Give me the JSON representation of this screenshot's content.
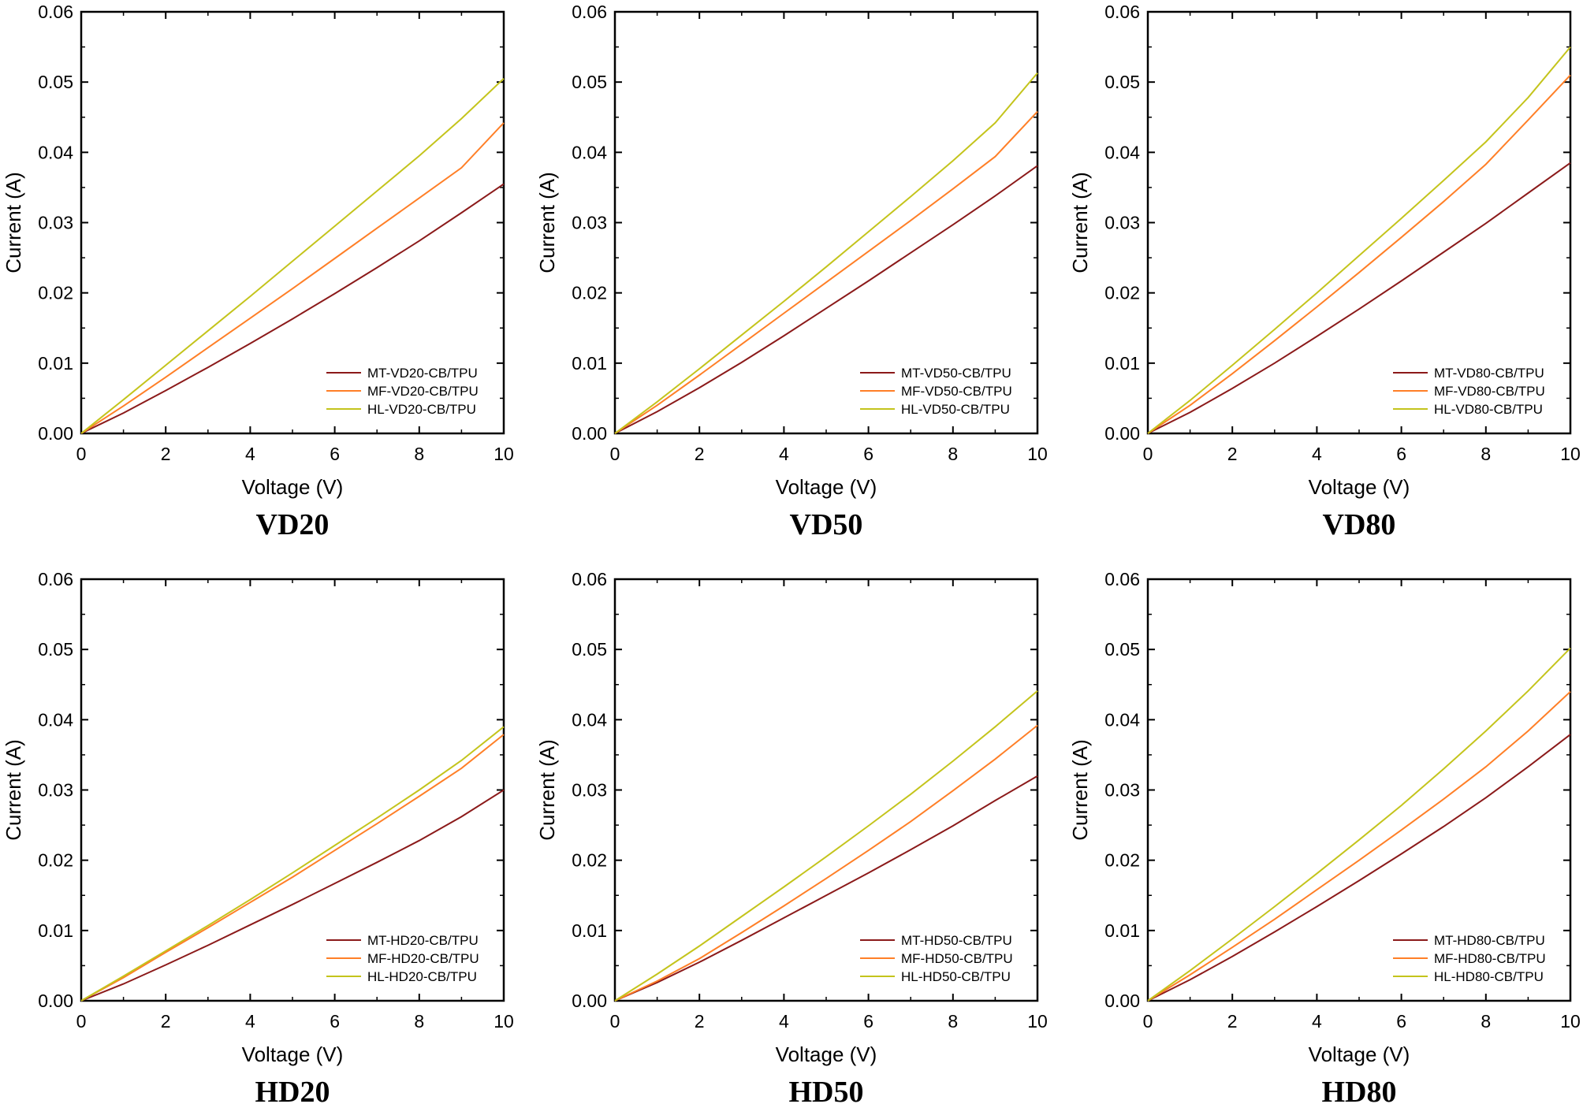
{
  "colors": {
    "MT": "#8b1a1a",
    "MF": "#ff7f27",
    "HL": "#c4c41c",
    "axis": "#000000",
    "background": "#ffffff"
  },
  "chart_data": [
    {
      "type": "line",
      "title": "VD20",
      "xlabel": "Voltage (V)",
      "ylabel": "Current (A)",
      "xlim": [
        0,
        10
      ],
      "ylim": [
        0,
        0.06
      ],
      "xticks": [
        "0",
        "2",
        "4",
        "6",
        "8",
        "10"
      ],
      "yticks": [
        "0.00",
        "0.01",
        "0.02",
        "0.03",
        "0.04",
        "0.05",
        "0.06"
      ],
      "legend_position": "bottom-right",
      "x": [
        0,
        1,
        2,
        3,
        4,
        5,
        6,
        7,
        8,
        9,
        10
      ],
      "series": [
        {
          "name": "MT-VD20-CB/TPU",
          "color": "#8b1a1a",
          "values": [
            0,
            0.0029,
            0.0061,
            0.0094,
            0.0128,
            0.0163,
            0.0199,
            0.0236,
            0.0274,
            0.0314,
            0.0355
          ]
        },
        {
          "name": "MF-VD20-CB/TPU",
          "color": "#ff7f27",
          "values": [
            0,
            0.0039,
            0.008,
            0.0122,
            0.0164,
            0.0206,
            0.0249,
            0.0292,
            0.0335,
            0.0378,
            0.0442
          ]
        },
        {
          "name": "HL-VD20-CB/TPU",
          "color": "#c4c41c",
          "values": [
            0,
            0.0048,
            0.0097,
            0.0146,
            0.0195,
            0.0245,
            0.0295,
            0.0345,
            0.0395,
            0.0448,
            0.0505
          ]
        }
      ]
    },
    {
      "type": "line",
      "title": "VD50",
      "xlabel": "Voltage (V)",
      "ylabel": "Current (A)",
      "xlim": [
        0,
        10
      ],
      "ylim": [
        0,
        0.06
      ],
      "xticks": [
        "0",
        "2",
        "4",
        "6",
        "8",
        "10"
      ],
      "yticks": [
        "0.00",
        "0.01",
        "0.02",
        "0.03",
        "0.04",
        "0.05",
        "0.06"
      ],
      "legend_position": "bottom-right",
      "x": [
        0,
        1,
        2,
        3,
        4,
        5,
        6,
        7,
        8,
        9,
        10
      ],
      "series": [
        {
          "name": "MT-VD50-CB/TPU",
          "color": "#8b1a1a",
          "values": [
            0,
            0.0031,
            0.0065,
            0.0101,
            0.0139,
            0.0178,
            0.0217,
            0.0257,
            0.0297,
            0.0338,
            0.0381
          ]
        },
        {
          "name": "MF-VD50-CB/TPU",
          "color": "#ff7f27",
          "values": [
            0,
            0.004,
            0.0083,
            0.0127,
            0.0171,
            0.0215,
            0.0259,
            0.0303,
            0.0348,
            0.0394,
            0.0458
          ]
        },
        {
          "name": "HL-VD50-CB/TPU",
          "color": "#c4c41c",
          "values": [
            0,
            0.0045,
            0.0092,
            0.014,
            0.0188,
            0.0237,
            0.0287,
            0.0337,
            0.0388,
            0.0442,
            0.0513
          ]
        }
      ]
    },
    {
      "type": "line",
      "title": "VD80",
      "xlabel": "Voltage (V)",
      "ylabel": "Current (A)",
      "xlim": [
        0,
        10
      ],
      "ylim": [
        0,
        0.06
      ],
      "xticks": [
        "0",
        "2",
        "4",
        "6",
        "8",
        "10"
      ],
      "yticks": [
        "0.00",
        "0.01",
        "0.02",
        "0.03",
        "0.04",
        "0.05",
        "0.06"
      ],
      "legend_position": "bottom-right",
      "x": [
        0,
        1,
        2,
        3,
        4,
        5,
        6,
        7,
        8,
        9,
        10
      ],
      "series": [
        {
          "name": "MT-VD80-CB/TPU",
          "color": "#8b1a1a",
          "values": [
            0,
            0.003,
            0.0064,
            0.01,
            0.0138,
            0.0177,
            0.0217,
            0.0258,
            0.0299,
            0.0342,
            0.0385
          ]
        },
        {
          "name": "MF-VD80-CB/TPU",
          "color": "#ff7f27",
          "values": [
            0,
            0.004,
            0.0085,
            0.0132,
            0.018,
            0.0229,
            0.0279,
            0.033,
            0.0383,
            0.0446,
            0.051
          ]
        },
        {
          "name": "HL-VD80-CB/TPU",
          "color": "#c4c41c",
          "values": [
            0,
            0.0047,
            0.0097,
            0.0148,
            0.02,
            0.0253,
            0.0306,
            0.036,
            0.0415,
            0.0478,
            0.055
          ]
        }
      ]
    },
    {
      "type": "line",
      "title": "HD20",
      "xlabel": "Voltage (V)",
      "ylabel": "Current (A)",
      "xlim": [
        0,
        10
      ],
      "ylim": [
        0,
        0.06
      ],
      "xticks": [
        "0",
        "2",
        "4",
        "6",
        "8",
        "10"
      ],
      "yticks": [
        "0.00",
        "0.01",
        "0.02",
        "0.03",
        "0.04",
        "0.05",
        "0.06"
      ],
      "legend_position": "bottom-right",
      "x": [
        0,
        1,
        2,
        3,
        4,
        5,
        6,
        7,
        8,
        9,
        10
      ],
      "series": [
        {
          "name": "MT-HD20-CB/TPU",
          "color": "#8b1a1a",
          "values": [
            0,
            0.0024,
            0.0051,
            0.0079,
            0.0108,
            0.0137,
            0.0167,
            0.0197,
            0.0228,
            0.0262,
            0.03
          ]
        },
        {
          "name": "MF-HD20-CB/TPU",
          "color": "#ff7f27",
          "values": [
            0,
            0.0033,
            0.0069,
            0.0104,
            0.014,
            0.0176,
            0.0214,
            0.0252,
            0.0291,
            0.0331,
            0.0379
          ]
        },
        {
          "name": "HL-HD20-CB/TPU",
          "color": "#c4c41c",
          "values": [
            0,
            0.0035,
            0.0071,
            0.0107,
            0.0144,
            0.0182,
            0.0221,
            0.026,
            0.03,
            0.0342,
            0.039
          ]
        }
      ]
    },
    {
      "type": "line",
      "title": "HD50",
      "xlabel": "Voltage (V)",
      "ylabel": "Current (A)",
      "xlim": [
        0,
        10
      ],
      "ylim": [
        0,
        0.06
      ],
      "xticks": [
        "0",
        "2",
        "4",
        "6",
        "8",
        "10"
      ],
      "yticks": [
        "0.00",
        "0.01",
        "0.02",
        "0.03",
        "0.04",
        "0.05",
        "0.06"
      ],
      "legend_position": "bottom-right",
      "x": [
        0,
        1,
        2,
        3,
        4,
        5,
        6,
        7,
        8,
        9,
        10
      ],
      "series": [
        {
          "name": "MT-HD50-CB/TPU",
          "color": "#8b1a1a",
          "values": [
            0,
            0.0026,
            0.0055,
            0.0086,
            0.0118,
            0.015,
            0.0182,
            0.0215,
            0.0249,
            0.0285,
            0.032
          ]
        },
        {
          "name": "MF-HD50-CB/TPU",
          "color": "#ff7f27",
          "values": [
            0,
            0.0028,
            0.006,
            0.0097,
            0.0135,
            0.0174,
            0.0214,
            0.0255,
            0.0299,
            0.0344,
            0.0392
          ]
        },
        {
          "name": "HL-HD50-CB/TPU",
          "color": "#c4c41c",
          "values": [
            0,
            0.0038,
            0.0078,
            0.012,
            0.0162,
            0.0205,
            0.0249,
            0.0294,
            0.0341,
            0.039,
            0.0441
          ]
        }
      ]
    },
    {
      "type": "line",
      "title": "HD80",
      "xlabel": "Voltage (V)",
      "ylabel": "Current (A)",
      "xlim": [
        0,
        10
      ],
      "ylim": [
        0,
        0.06
      ],
      "xticks": [
        "0",
        "2",
        "4",
        "6",
        "8",
        "10"
      ],
      "yticks": [
        "0.00",
        "0.01",
        "0.02",
        "0.03",
        "0.04",
        "0.05",
        "0.06"
      ],
      "legend_position": "bottom-right",
      "x": [
        0,
        1,
        2,
        3,
        4,
        5,
        6,
        7,
        8,
        9,
        10
      ],
      "series": [
        {
          "name": "MT-HD80-CB/TPU",
          "color": "#8b1a1a",
          "values": [
            0,
            0.003,
            0.0063,
            0.0098,
            0.0134,
            0.0171,
            0.0209,
            0.0248,
            0.0289,
            0.0333,
            0.0379
          ]
        },
        {
          "name": "MF-HD80-CB/TPU",
          "color": "#ff7f27",
          "values": [
            0,
            0.0037,
            0.0076,
            0.0116,
            0.0158,
            0.02,
            0.0243,
            0.0287,
            0.0333,
            0.0384,
            0.044
          ]
        },
        {
          "name": "HL-HD80-CB/TPU",
          "color": "#c4c41c",
          "values": [
            0,
            0.0043,
            0.0088,
            0.0134,
            0.0181,
            0.0229,
            0.0278,
            0.033,
            0.0384,
            0.0441,
            0.0502
          ]
        }
      ]
    }
  ]
}
